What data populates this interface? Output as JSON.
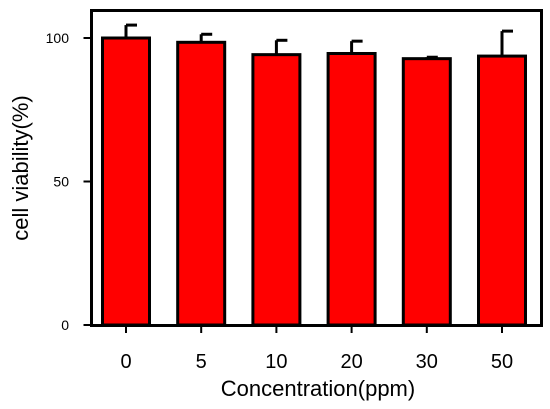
{
  "chart_data": {
    "type": "bar",
    "title": "",
    "xlabel": "Concentration(ppm)",
    "ylabel": "cell viability(%)",
    "categories": [
      "0",
      "5",
      "10",
      "20",
      "30",
      "50"
    ],
    "values": [
      100,
      98.5,
      94.2,
      94.6,
      92.8,
      93.7
    ],
    "errors": [
      4.5,
      2.8,
      5.0,
      4.3,
      0.5,
      8.7
    ],
    "ylim": [
      0,
      100
    ],
    "yticks": [
      "0",
      "50",
      "100"
    ],
    "bar_color": "#ff0000",
    "grid": false
  }
}
